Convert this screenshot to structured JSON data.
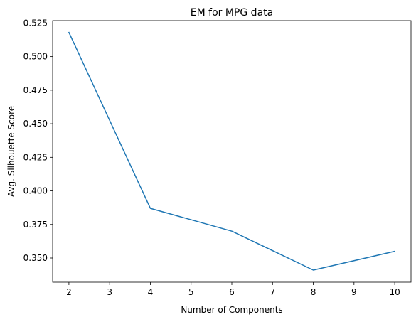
{
  "chart_data": {
    "type": "line",
    "title": "EM for MPG data",
    "xlabel": "Number of Components",
    "ylabel": "Avg. Silhouette Score",
    "xlim": [
      1.6,
      10.4
    ],
    "ylim": [
      0.332,
      0.5268
    ],
    "xticks": [
      2,
      3,
      4,
      5,
      6,
      7,
      8,
      9,
      10
    ],
    "yticks": [
      0.35,
      0.375,
      0.4,
      0.425,
      0.45,
      0.475,
      0.5,
      0.525
    ],
    "ytick_labels": [
      "0.350",
      "0.375",
      "0.400",
      "0.425",
      "0.450",
      "0.475",
      "0.500",
      "0.525"
    ],
    "grid": false,
    "series": [
      {
        "color": "#1f77b4",
        "x": [
          2,
          4,
          6,
          8,
          10
        ],
        "y": [
          0.518,
          0.387,
          0.37,
          0.341,
          0.355
        ]
      }
    ]
  }
}
